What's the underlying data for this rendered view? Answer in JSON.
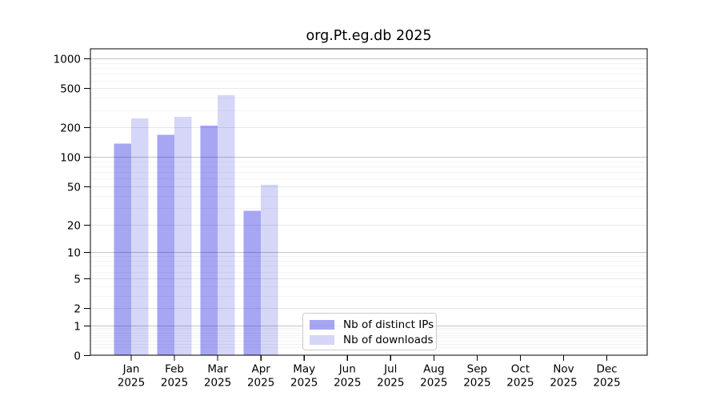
{
  "title": "org.Pt.eg.db 2025",
  "chart_data": {
    "type": "bar",
    "title": "org.Pt.eg.db 2025",
    "yscale": "log10(1+x)",
    "ylim": [
      0,
      1258
    ],
    "yticks": [
      0,
      1,
      2,
      5,
      10,
      20,
      50,
      100,
      200,
      500,
      1000
    ],
    "grid": true,
    "legend_position": "inside-bottom-center",
    "categories": [
      "Jan",
      "Feb",
      "Mar",
      "Apr",
      "May",
      "Jun",
      "Jul",
      "Aug",
      "Sep",
      "Oct",
      "Nov",
      "Dec"
    ],
    "category_year": "2025",
    "series": [
      {
        "name": "Nb of distinct IPs",
        "color": "rgba(0,0,220,0.35)",
        "values": [
          137,
          169,
          210,
          28,
          0,
          0,
          0,
          0,
          0,
          0,
          0,
          0
        ]
      },
      {
        "name": "Nb of downloads",
        "color": "rgba(0,0,220,0.16)",
        "values": [
          248,
          257,
          428,
          52,
          0,
          0,
          0,
          0,
          0,
          0,
          0,
          0
        ]
      }
    ]
  },
  "colors": {
    "background": "#ffffff",
    "axis": "#000000",
    "grid_power10": "#c4c4c4",
    "grid_labeled": "#e8e8e8",
    "grid_minor": "#f4f4f4",
    "legend_border": "#cbcbcb"
  }
}
